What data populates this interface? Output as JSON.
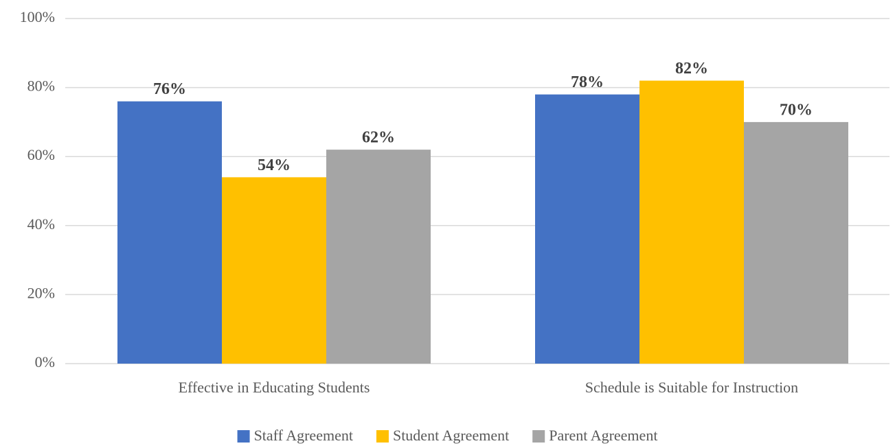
{
  "chart_data": {
    "type": "bar",
    "categories": [
      "Effective in Educating Students",
      "Schedule is Suitable for Instruction"
    ],
    "series": [
      {
        "name": "Staff Agreement",
        "color": "#4472c4",
        "values": [
          76,
          78
        ],
        "value_labels": [
          "76%",
          "78%"
        ]
      },
      {
        "name": "Student Agreement",
        "color": "#ffc000",
        "values": [
          54,
          82
        ],
        "value_labels": [
          "54%",
          "82%"
        ]
      },
      {
        "name": "Parent Agreement",
        "color": "#a5a5a5",
        "values": [
          62,
          70
        ],
        "value_labels": [
          "62%",
          "70%"
        ]
      }
    ],
    "ylim": [
      0,
      100
    ],
    "yticks": [
      {
        "value": 0,
        "label": "0%"
      },
      {
        "value": 20,
        "label": "20%"
      },
      {
        "value": 40,
        "label": "40%"
      },
      {
        "value": 60,
        "label": "60%"
      },
      {
        "value": 80,
        "label": "80%"
      },
      {
        "value": 100,
        "label": "100%"
      }
    ],
    "grid": true,
    "legend": "bottom"
  }
}
